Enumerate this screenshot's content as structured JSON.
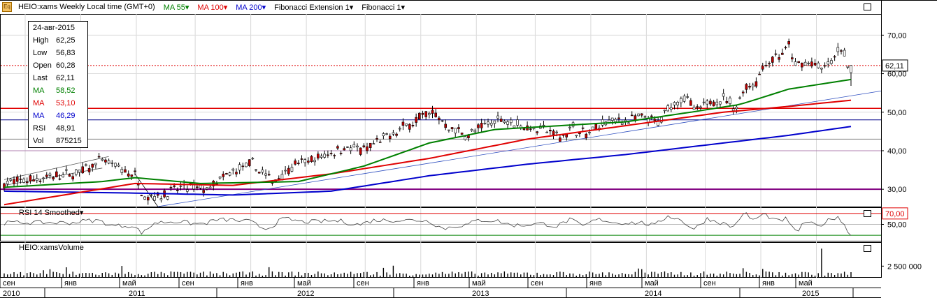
{
  "toolbar": {
    "icon": "chart-app-icon",
    "icon_text": "Eq",
    "title": "HEIO:xams Weekly Local time (GMT+0)",
    "indicators": [
      {
        "label": "MA 55",
        "color": "#008000"
      },
      {
        "label": "MA 100",
        "color": "#e00000"
      },
      {
        "label": "MA 200",
        "color": "#0000cc"
      },
      {
        "label": "Fibonacci Extension 1",
        "color": "#000000"
      },
      {
        "label": "Fibonacci 1",
        "color": "#000000"
      }
    ]
  },
  "info_box": {
    "date": "24-авг-2015",
    "rows": [
      {
        "k": "High",
        "v": "62,25",
        "color": "#000000"
      },
      {
        "k": "Low",
        "v": "56,83",
        "color": "#000000"
      },
      {
        "k": "Open",
        "v": "60,28",
        "color": "#000000"
      },
      {
        "k": "Last",
        "v": "62,11",
        "color": "#000000"
      },
      {
        "k": "MA",
        "v": "58,52",
        "color": "#008000"
      },
      {
        "k": "MA",
        "v": "53,10",
        "color": "#e00000"
      },
      {
        "k": "MA",
        "v": "46,29",
        "color": "#0000cc"
      },
      {
        "k": "RSI",
        "v": "48,91",
        "color": "#000000"
      },
      {
        "k": "Vol",
        "v": "875215",
        "color": "#000000"
      }
    ]
  },
  "rsi_panel": {
    "title": "RSI 14 Smoothed",
    "overbought": "70,00",
    "mid": "50,00"
  },
  "volume_panel": {
    "title": "HEIO:xamsVolume",
    "tick": "2 500 000"
  },
  "chart_data": {
    "type": "candlestick",
    "y_ticks": [
      "30,00",
      "40,00",
      "50,00",
      "60,00",
      "70,00"
    ],
    "y_tick_values": [
      30,
      40,
      50,
      60,
      70
    ],
    "ylim": [
      25.5,
      75.5
    ],
    "last_price": "62,11",
    "last_price_value": 62.11,
    "x_month_labels": [
      {
        "label": "сен",
        "t": 0
      },
      {
        "label": "янв",
        "t": 17
      },
      {
        "label": "май",
        "t": 34
      },
      {
        "label": "сен",
        "t": 52
      },
      {
        "label": "янв",
        "t": 69
      },
      {
        "label": "май",
        "t": 86
      },
      {
        "label": "сен",
        "t": 104
      },
      {
        "label": "янв",
        "t": 121
      },
      {
        "label": "май",
        "t": 138
      },
      {
        "label": "сен",
        "t": 156
      },
      {
        "label": "янв",
        "t": 173
      },
      {
        "label": "май",
        "t": 190
      },
      {
        "label": "сен",
        "t": 208
      },
      {
        "label": "янв",
        "t": 225
      },
      {
        "label": "май",
        "t": 242
      }
    ],
    "x_year_labels": [
      {
        "label": "2010",
        "t": 0
      },
      {
        "label": "2011",
        "t": 30
      },
      {
        "label": "2012",
        "t": 82
      },
      {
        "label": "2013",
        "t": 134
      },
      {
        "label": "2014",
        "t": 186
      },
      {
        "label": "2015",
        "t": 238
      }
    ],
    "x_year_breaks": [
      13,
      65,
      117,
      169,
      221
    ],
    "weeks": 260,
    "price_anchors": [
      [
        0,
        31.5
      ],
      [
        12,
        33
      ],
      [
        22,
        34
      ],
      [
        30,
        37.5
      ],
      [
        36,
        35
      ],
      [
        40,
        33.5
      ],
      [
        43,
        28
      ],
      [
        48,
        28.5
      ],
      [
        55,
        30.5
      ],
      [
        62,
        30
      ],
      [
        70,
        34.5
      ],
      [
        76,
        36.5
      ],
      [
        82,
        32
      ],
      [
        88,
        36
      ],
      [
        96,
        38
      ],
      [
        104,
        41
      ],
      [
        110,
        40
      ],
      [
        116,
        43
      ],
      [
        122,
        46
      ],
      [
        128,
        49
      ],
      [
        131,
        50
      ],
      [
        136,
        46
      ],
      [
        142,
        44
      ],
      [
        148,
        47
      ],
      [
        152,
        48.5
      ],
      [
        160,
        46
      ],
      [
        166,
        45.5
      ],
      [
        170,
        43.5
      ],
      [
        174,
        46
      ],
      [
        178,
        44
      ],
      [
        184,
        47.5
      ],
      [
        190,
        48
      ],
      [
        196,
        48.5
      ],
      [
        200,
        47
      ],
      [
        204,
        52
      ],
      [
        208,
        54
      ],
      [
        212,
        50
      ],
      [
        216,
        53
      ],
      [
        220,
        53.5
      ],
      [
        224,
        51
      ],
      [
        226,
        56
      ],
      [
        230,
        58
      ],
      [
        233,
        63
      ],
      [
        238,
        65
      ],
      [
        240,
        67
      ],
      [
        242,
        62
      ],
      [
        246,
        63
      ],
      [
        250,
        61
      ],
      [
        254,
        64
      ],
      [
        256,
        67
      ],
      [
        258,
        62.5
      ],
      [
        259,
        60.3
      ]
    ],
    "ma55": [
      [
        0,
        30.5
      ],
      [
        30,
        32
      ],
      [
        40,
        33
      ],
      [
        60,
        31.5
      ],
      [
        90,
        32
      ],
      [
        110,
        36
      ],
      [
        130,
        42
      ],
      [
        150,
        45.5
      ],
      [
        170,
        46.5
      ],
      [
        190,
        47.5
      ],
      [
        210,
        50
      ],
      [
        225,
        52
      ],
      [
        240,
        56
      ],
      [
        259,
        58.5
      ]
    ],
    "ma100": [
      [
        0,
        26
      ],
      [
        40,
        31.5
      ],
      [
        70,
        31
      ],
      [
        100,
        34
      ],
      [
        130,
        38
      ],
      [
        160,
        43
      ],
      [
        190,
        46.5
      ],
      [
        220,
        50
      ],
      [
        240,
        51.5
      ],
      [
        259,
        53.1
      ]
    ],
    "ma200": [
      [
        0,
        29.5
      ],
      [
        40,
        29
      ],
      [
        70,
        28.5
      ],
      [
        100,
        29.5
      ],
      [
        130,
        33.5
      ],
      [
        160,
        36.5
      ],
      [
        190,
        39
      ],
      [
        220,
        42
      ],
      [
        240,
        44
      ],
      [
        259,
        46.3
      ]
    ],
    "h_lines": [
      {
        "y": 51,
        "color": "#e00000",
        "w": 1.5
      },
      {
        "y": 48,
        "color": "#000088",
        "w": 1
      },
      {
        "y": 43,
        "color": "#808080",
        "w": 1
      },
      {
        "y": 40,
        "color": "#b080b0",
        "w": 1
      },
      {
        "y": 30,
        "color": "#800080",
        "w": 2
      },
      {
        "y": 62.11,
        "color": "#e00000",
        "w": 1,
        "dash": true
      }
    ],
    "trend_lines": [
      {
        "from": [
          0,
          32.5
        ],
        "to": [
          32,
          38.5
        ],
        "color": "#555555"
      },
      {
        "from": [
          0,
          31
        ],
        "to": [
          30,
          35.5
        ],
        "color": "#555555"
      },
      {
        "from": [
          40,
          34
        ],
        "to": [
          47,
          25.5
        ],
        "color": "#000000"
      },
      {
        "from": [
          47,
          25.5
        ],
        "to": [
          272,
          55.5
        ],
        "color": "#3050c0"
      }
    ],
    "volume_spike": {
      "t": 250,
      "value": 6500000
    },
    "volume_typical": 900000
  }
}
